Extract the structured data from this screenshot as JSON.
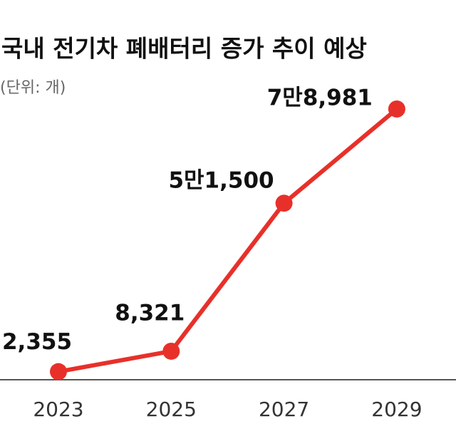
{
  "chart_data": {
    "type": "line",
    "title": "국내 전기차 폐배터리 증가 추이 예상",
    "subtitle": "(단위: 개)",
    "categories": [
      "2023",
      "2025",
      "2027",
      "2029"
    ],
    "series": [
      {
        "name": "폐배터리",
        "color": "#e8302a",
        "values": [
          2355,
          8321,
          51500,
          78981
        ],
        "value_labels": [
          "2,355",
          "8,321",
          "5만1,500",
          "7만8,981"
        ]
      }
    ]
  }
}
